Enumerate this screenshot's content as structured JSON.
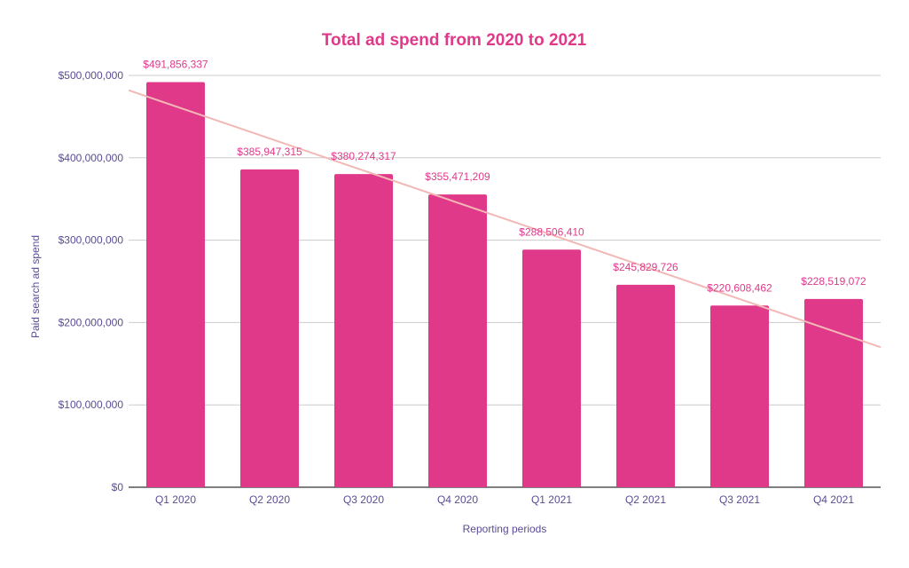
{
  "colors": {
    "title": "#e0398a",
    "bar": "#e0398a",
    "data_label": "#e0398a",
    "axis_text": "#5b4c94",
    "grid": "#cccccc",
    "baseline": "#333333",
    "trendline": "#f2b8b5"
  },
  "chart_data": {
    "type": "bar",
    "title": "Total ad spend from 2020 to 2021",
    "xlabel": "Reporting periods",
    "ylabel": "Paid search ad spend",
    "categories": [
      "Q1 2020",
      "Q2 2020",
      "Q3 2020",
      "Q4 2020",
      "Q1 2021",
      "Q2 2021",
      "Q3 2021",
      "Q4 2021"
    ],
    "values": [
      491856337,
      385947315,
      380274317,
      355471209,
      288506410,
      245829726,
      220608462,
      228519072
    ],
    "data_labels": [
      "$491,856,337",
      "$385,947,315",
      "$380,274,317",
      "$355,471,209",
      "$288,506,410",
      "$245,829,726",
      "$220,608,462",
      "$228,519,072"
    ],
    "ylim": [
      0,
      500000000
    ],
    "yticks": [
      0,
      100000000,
      200000000,
      300000000,
      400000000,
      500000000
    ],
    "ytick_labels": [
      "$0",
      "$100,000,000",
      "$200,000,000",
      "$300,000,000",
      "$400,000,000",
      "$500,000,000"
    ],
    "grid": true,
    "legend": "none",
    "trendline": {
      "type": "linear",
      "start_value": 482000000,
      "end_value": 170000000
    }
  }
}
